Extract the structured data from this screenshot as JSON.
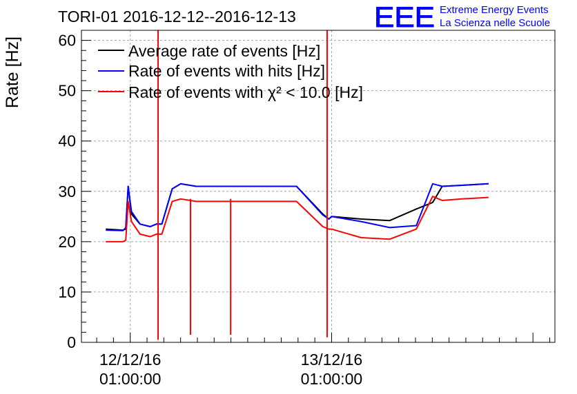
{
  "chart_data": {
    "type": "line",
    "title": "TORI-01 2016-12-12--2016-12-13",
    "xlabel": "",
    "ylabel": "Rate [Hz]",
    "ylim": [
      0,
      62
    ],
    "y_ticks": [
      0,
      10,
      20,
      30,
      40,
      50,
      60
    ],
    "xlim": [
      "2016-12-11 19:11",
      "2016-12-14 03:37"
    ],
    "x_major_ticks": [
      {
        "x": "2016-12-12 01:00:00",
        "date": "12/12/16",
        "time": "01:00:00"
      },
      {
        "x": "2016-12-13 01:00:00",
        "date": "13/12/16",
        "time": "01:00:00"
      }
    ],
    "grid": true,
    "legend_position": "top-left",
    "series": [
      {
        "name": "Average rate of events [Hz]",
        "color": "#000000",
        "x": [
          "2016-12-11 22:05",
          "2016-12-12 00:08",
          "2016-12-12 00:28",
          "2016-12-12 00:45",
          "2016-12-12 01:09",
          "2016-12-12 02:10",
          "2016-12-12 03:23",
          "2016-12-12 04:07",
          "2016-12-12 04:46",
          "2016-12-12 06:00",
          "2016-12-12 07:01",
          "2016-12-12 08:52",
          "2016-12-12 09:08",
          "2016-12-12 11:15",
          "2016-12-12 14:19",
          "2016-12-12 17:56",
          "2016-12-12 20:49",
          "2016-12-12 23:57",
          "2016-12-13 00:40",
          "2016-12-13 01:00",
          "2016-12-13 04:31",
          "2016-12-13 07:56",
          "2016-12-13 11:06",
          "2016-12-13 13:03",
          "2016-12-13 14:11",
          "2016-12-13 16:32",
          "2016-12-13 19:42"
        ],
        "y": [
          22.5,
          22.3,
          22.5,
          31,
          25.5,
          23.5,
          23.0,
          23.5,
          23.5,
          30.5,
          31.5,
          31.0,
          31.0,
          31.0,
          31.0,
          31.0,
          31.0,
          25.5,
          24.5,
          25.0,
          24.5,
          24.2,
          26.5,
          27.8,
          31.0,
          31.2,
          31.5
        ]
      },
      {
        "name": "Rate of events with hits [Hz]",
        "color": "#0000ff",
        "x": [
          "2016-12-11 22:05",
          "2016-12-12 00:08",
          "2016-12-12 00:28",
          "2016-12-12 00:45",
          "2016-12-12 01:09",
          "2016-12-12 02:10",
          "2016-12-12 03:23",
          "2016-12-12 04:07",
          "2016-12-12 04:46",
          "2016-12-12 06:00",
          "2016-12-12 07:01",
          "2016-12-12 08:52",
          "2016-12-12 09:08",
          "2016-12-12 11:15",
          "2016-12-12 14:19",
          "2016-12-12 17:56",
          "2016-12-12 20:49",
          "2016-12-12 23:57",
          "2016-12-13 00:40",
          "2016-12-13 01:00",
          "2016-12-13 04:31",
          "2016-12-13 07:56",
          "2016-12-13 11:06",
          "2016-12-13 13:03",
          "2016-12-13 14:11",
          "2016-12-13 16:32",
          "2016-12-13 19:42"
        ],
        "y": [
          22.3,
          22.2,
          22.8,
          31,
          26,
          23.5,
          23.0,
          23.5,
          23.5,
          30.5,
          31.5,
          31.0,
          31.0,
          31.0,
          31.0,
          31.0,
          31.0,
          25.3,
          24.5,
          25.0,
          24.0,
          22.8,
          23.2,
          31.5,
          31.0,
          31.2,
          31.5
        ]
      },
      {
        "name": "Rate of events with χ² < 10.0 [Hz]",
        "color": "#ff0000",
        "x": [
          "2016-12-11 22:05",
          "2016-12-12 00:08",
          "2016-12-12 00:28",
          "2016-12-12 00:45",
          "2016-12-12 01:09",
          "2016-12-12 02:10",
          "2016-12-12 03:23",
          "2016-12-12 04:07",
          "2016-12-12 04:46",
          "2016-12-12 06:00",
          "2016-12-12 07:01",
          "2016-12-12 08:52",
          "2016-12-12 09:08",
          "2016-12-12 11:15",
          "2016-12-12 14:19",
          "2016-12-12 17:56",
          "2016-12-12 20:49",
          "2016-12-12 23:57",
          "2016-12-13 00:40",
          "2016-12-13 01:00",
          "2016-12-13 04:31",
          "2016-12-13 07:56",
          "2016-12-13 11:06",
          "2016-12-13 13:03",
          "2016-12-13 14:11",
          "2016-12-13 16:32",
          "2016-12-13 19:42"
        ],
        "y": [
          20.0,
          20.0,
          20.3,
          28,
          24,
          21.5,
          21.0,
          21.5,
          21.5,
          28.0,
          28.5,
          28.0,
          28.0,
          28.0,
          28.0,
          28.0,
          28.0,
          23.0,
          22.5,
          22.5,
          20.8,
          20.5,
          22.5,
          29.0,
          28.2,
          28.5,
          28.8
        ]
      }
    ],
    "spikes": [
      {
        "x": "2016-12-12 04:19",
        "y_max": 62,
        "y_min": 0.5,
        "color": "#ff0000"
      },
      {
        "x": "2016-12-12 08:11",
        "y_max": 28.5,
        "y_min": 1.5,
        "color": "#ff0000"
      },
      {
        "x": "2016-12-12 12:58",
        "y_max": 28.5,
        "y_min": 1.5,
        "color": "#ff0000"
      },
      {
        "x": "2016-12-13 00:28",
        "y_max": 62,
        "y_min": 1.0,
        "color": "#ff0000"
      }
    ]
  },
  "logo": {
    "letters": "EEE",
    "line1": "Extreme Energy Events",
    "line2": "La Scienza nelle Scuole"
  }
}
